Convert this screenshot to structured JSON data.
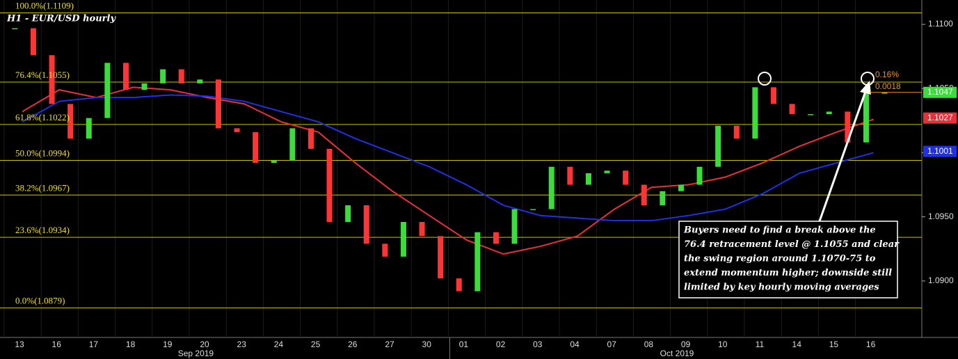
{
  "chart_data": {
    "type": "candlestick",
    "title": "H1 - EUR/USD hourly",
    "categories": [
      "13",
      "16",
      "17",
      "18",
      "19",
      "20",
      "23",
      "24",
      "25",
      "26",
      "27",
      "30",
      "01",
      "02",
      "03",
      "04",
      "07",
      "08",
      "09",
      "10",
      "11",
      "14",
      "15",
      "16"
    ],
    "months": [
      {
        "label": "Sep 2019",
        "index": 4.5
      },
      {
        "label": "Oct 2019",
        "index": 17.5
      }
    ],
    "ylim": [
      1.0856,
      1.1119
    ],
    "yticks": [
      {
        "value": 1.09,
        "label": "1.0900"
      },
      {
        "value": 1.095,
        "label": "1.0950"
      },
      {
        "value": 1.1,
        "label": "1.1000"
      },
      {
        "value": 1.105,
        "label": "1.1050"
      },
      {
        "value": 1.11,
        "label": "1.1100"
      }
    ],
    "price": {
      "up_color": "#3ddc3d",
      "down_color": "#ff3535",
      "values": [
        1.1097,
        1.1076,
        1.1038,
        1.1011,
        1.1027,
        1.107,
        1.1049,
        1.1054,
        1.1065,
        1.1054,
        1.1057,
        1.1019,
        1.1016,
        1.0992,
        1.0994,
        1.1019,
        1.1003,
        1.0946,
        1.0959,
        1.0929,
        1.0919,
        1.0946,
        1.0935,
        1.0902,
        1.0892,
        1.0938,
        1.0929,
        1.0956,
        1.0956,
        1.0989,
        1.0975,
        1.0984,
        1.0986,
        1.0975,
        1.0959,
        1.097,
        1.0975,
        1.0989,
        1.1021,
        1.1011,
        1.1051,
        1.1038,
        1.103,
        1.103,
        1.1032,
        1.1008,
        1.1046,
        1.1047
      ]
    },
    "series": [
      {
        "color": "#e8303a",
        "values": [
          1.1032,
          1.1049,
          1.1043,
          1.1051,
          1.1049,
          1.1043,
          1.1038,
          1.1024,
          1.1016,
          1.0992,
          1.097,
          1.0951,
          1.0932,
          1.0921,
          1.0927,
          1.0935,
          1.0956,
          1.0973,
          1.0975,
          1.0981,
          1.0992,
          1.1005,
          1.1016,
          1.1026
        ]
      },
      {
        "color": "#2030e8",
        "values": [
          1.1024,
          1.104,
          1.1043,
          1.1043,
          1.1045,
          1.1044,
          1.104,
          1.1032,
          1.1024,
          1.1011,
          1.1,
          1.0989,
          1.0975,
          1.0959,
          1.0951,
          1.0949,
          1.0947,
          1.0947,
          1.0951,
          1.0956,
          1.0968,
          1.0984,
          1.0992,
          1.1
        ]
      }
    ],
    "fib_levels": [
      {
        "label": "100.0%(1.1109)",
        "value": 1.1109
      },
      {
        "label": "76.4%(1.1055)",
        "value": 1.1055
      },
      {
        "label": "61.8%(1.1022)",
        "value": 1.1022
      },
      {
        "label": "50.0%(1.0994)",
        "value": 1.0994
      },
      {
        "label": "38.2%(1.0967)",
        "value": 1.0967
      },
      {
        "label": "23.6%(1.0934)",
        "value": 1.0934
      },
      {
        "label": "0.0%(1.0879)",
        "value": 1.0879
      }
    ],
    "price_tags": [
      {
        "label": "1.1047",
        "value": 1.1047,
        "color": "#3ddc3d"
      },
      {
        "label": "1.1027",
        "value": 1.1027,
        "color": "#e8303a"
      },
      {
        "label": "1.1001",
        "value": 1.1001,
        "color": "#2030e8"
      }
    ],
    "change_labels": [
      "0.16%",
      "0.0018"
    ],
    "annotation": {
      "lines": [
        "Buyers need to find a break above the",
        "76.4 retracement level @ 1.1055 and clear",
        "the swing region around 1.1070-75 to",
        "extend momentum higher; downside still",
        "limited by key hourly moving averages"
      ]
    }
  }
}
